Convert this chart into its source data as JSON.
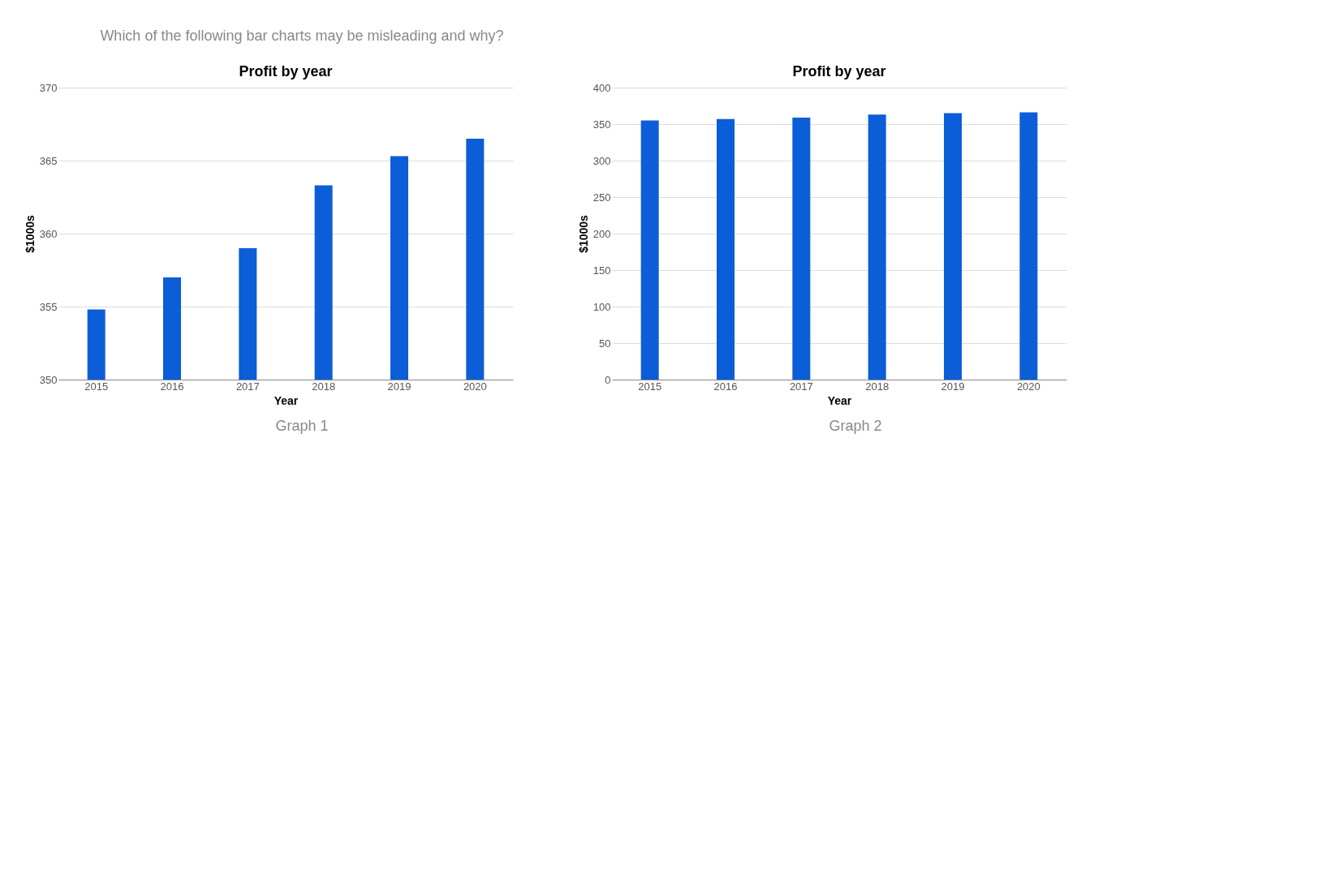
{
  "chart_data": [
    {
      "type": "bar",
      "title": "Profit by year",
      "xlabel": "Year",
      "ylabel": "$1000s",
      "categories": [
        "2015",
        "2016",
        "2017",
        "2018",
        "2019",
        "2020"
      ],
      "series": [
        {
          "color": "#0b5ed7",
          "values": [
            354.8,
            357,
            359,
            363.3,
            365.3,
            366.5
          ]
        }
      ],
      "ylim": [
        350,
        370
      ],
      "yticks": [
        350,
        355,
        360,
        365,
        370
      ],
      "grid": "y",
      "annotations": [
        "Which of the following bar charts may be misleading and why?",
        "Graph 1"
      ]
    },
    {
      "type": "bar",
      "title": "Profit by year",
      "xlabel": "Year",
      "ylabel": "$1000s",
      "categories": [
        "2015",
        "2016",
        "2017",
        "2018",
        "2019",
        "2020"
      ],
      "series": [
        {
          "color": "#0b5ed7",
          "values": [
            355,
            357,
            359,
            363,
            365,
            366
          ]
        }
      ],
      "ylim": [
        0,
        400
      ],
      "yticks": [
        0,
        50,
        100,
        150,
        200,
        250,
        300,
        350,
        400
      ],
      "grid": "y",
      "annotations": [
        "Graph 2"
      ]
    }
  ]
}
